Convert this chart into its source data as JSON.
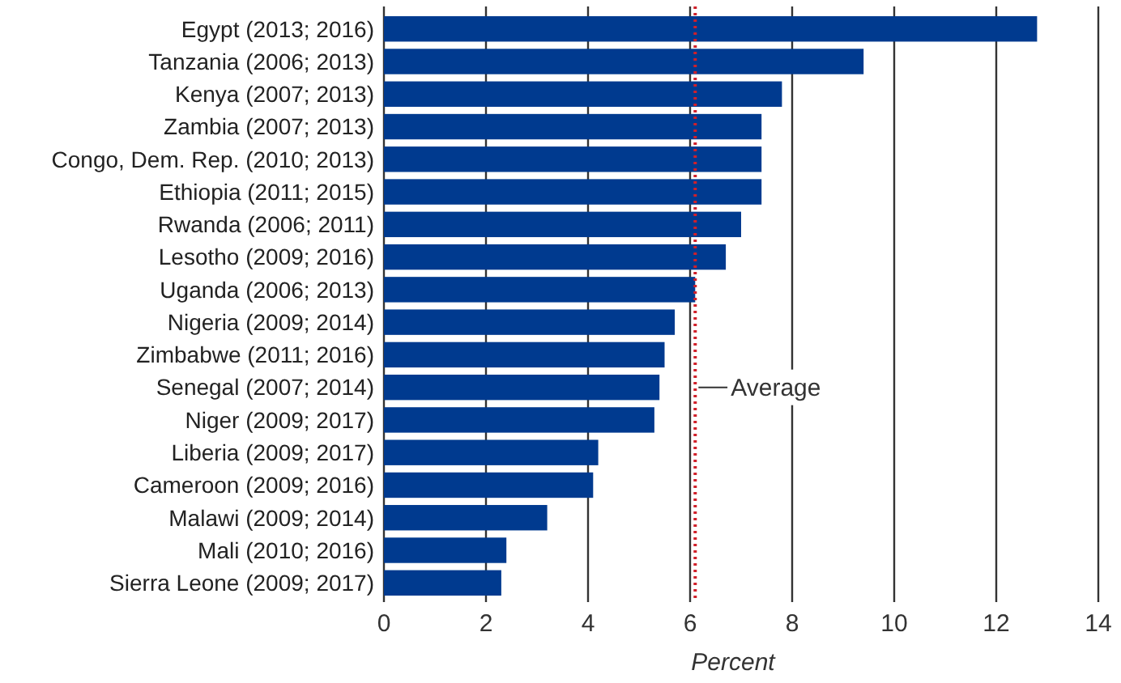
{
  "chart_data": {
    "type": "bar",
    "orientation": "horizontal",
    "xlabel": "Percent",
    "categories": [
      "Egypt (2013; 2016)",
      "Tanzania (2006; 2013)",
      "Kenya (2007; 2013)",
      "Zambia (2007; 2013)",
      "Congo, Dem. Rep. (2010; 2013)",
      "Ethiopia (2011; 2015)",
      "Rwanda (2006; 2011)",
      "Lesotho (2009; 2016)",
      "Uganda (2006; 2013)",
      "Nigeria (2009; 2014)",
      "Zimbabwe (2011; 2016)",
      "Senegal (2007; 2014)",
      "Niger (2009; 2017)",
      "Liberia (2009; 2017)",
      "Cameroon (2009; 2016)",
      "Malawi (2009; 2014)",
      "Mali (2010; 2016)",
      "Sierra Leone (2009; 2017)"
    ],
    "values": [
      12.8,
      9.4,
      7.8,
      7.4,
      7.4,
      7.4,
      7.0,
      6.7,
      6.1,
      5.7,
      5.5,
      5.4,
      5.3,
      4.2,
      4.1,
      3.2,
      2.4,
      2.3
    ],
    "color": "#003a8f",
    "xlim": [
      0,
      14
    ],
    "xticks": [
      0,
      2,
      4,
      6,
      8,
      10,
      12,
      14
    ],
    "grid": "x",
    "ref_lines": [
      {
        "axis": "x",
        "value": 6.1,
        "label": "Average",
        "color": "#d0202a",
        "line_style": "dotted"
      }
    ]
  }
}
